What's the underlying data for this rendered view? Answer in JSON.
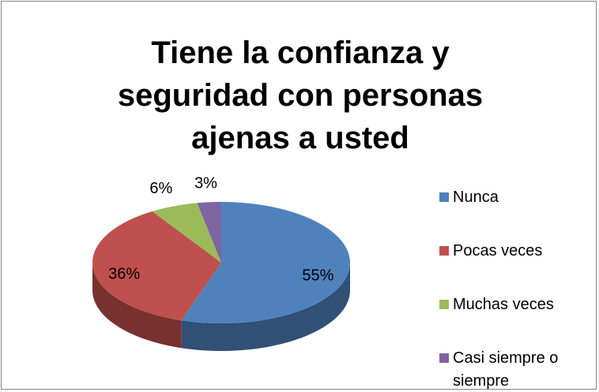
{
  "chart_data": {
    "type": "pie",
    "title": "Tiene la confianza y seguridad con personas ajenas a usted",
    "categories": [
      "Nunca",
      "Pocas veces",
      "Muchas veces",
      "Casi siempre o siempre"
    ],
    "values": [
      55,
      36,
      6,
      3
    ],
    "value_labels": [
      "55%",
      "36%",
      "6%",
      "3%"
    ],
    "colors": [
      "#4f81bd",
      "#c0504d",
      "#9bbb59",
      "#8064a2"
    ],
    "legend": "right"
  }
}
